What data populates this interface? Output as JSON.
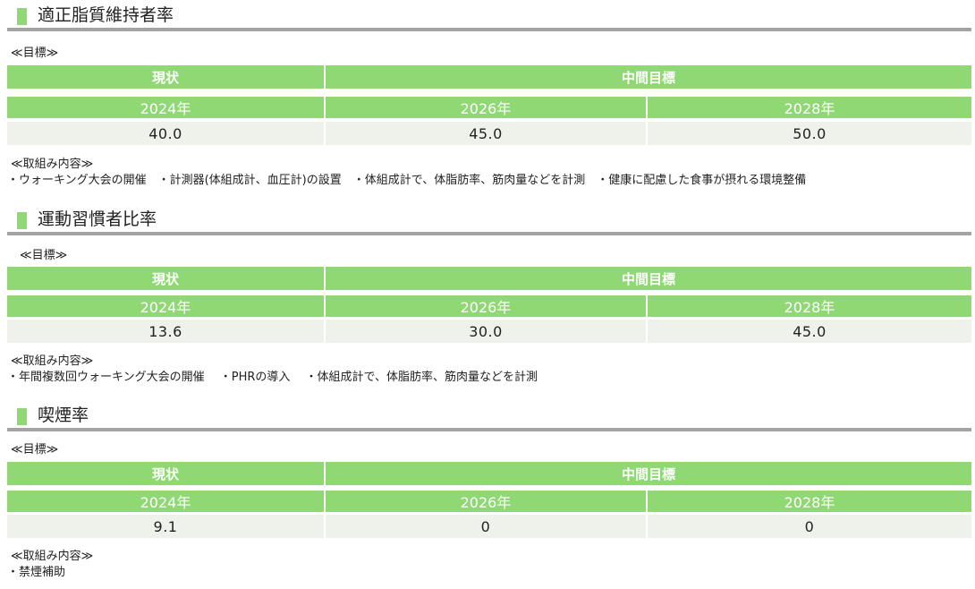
{
  "colors": {
    "green": "#8fd873",
    "value_bg": "#eef2ea",
    "rule": "#a3a3a3",
    "title_marker": "#8fd873"
  },
  "sections": [
    {
      "title": "適正脂質維持者率",
      "goal_label": "≪目標≫",
      "header_current": "現状",
      "header_mid": "中間目標",
      "years": [
        "2024年",
        "2026年",
        "2028年"
      ],
      "values": [
        "40.0",
        "45.0",
        "50.0"
      ],
      "activities_label": "≪取組み内容≫",
      "activities": "・ウォーキング大会の開催　・計測器(体組成計、血圧計)の設置　・体組成計で、体脂肪率、筋肉量などを計測　・健康に配慮した食事が摂れる環境整備"
    },
    {
      "title": "運動習慣者比率",
      "goal_label": "≪目標≫",
      "header_current": "現状",
      "header_mid": "中間目標",
      "years": [
        "2024年",
        "2026年",
        "2028年"
      ],
      "values": [
        "13.6",
        "30.0",
        "45.0"
      ],
      "activities_label": "≪取組み内容≫",
      "activities": "・年間複数回ウォーキング大会の開催　 ・PHRの導入　 ・体組成計で、体脂肪率、筋肉量などを計測"
    },
    {
      "title": "喫煙率",
      "goal_label": "≪目標≫",
      "header_current": "現状",
      "header_mid": "中間目標",
      "years": [
        "2024年",
        "2026年",
        "2028年"
      ],
      "values": [
        "9.1",
        "0",
        "0"
      ],
      "activities_label": "≪取組み内容≫",
      "activities": "・禁煙補助"
    }
  ]
}
